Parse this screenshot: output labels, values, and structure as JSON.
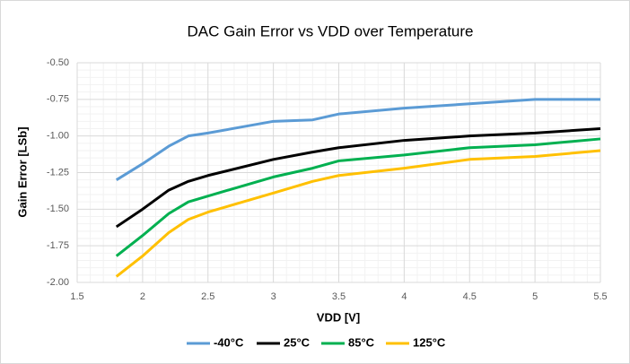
{
  "chart_data": {
    "type": "line",
    "title": "DAC Gain Error vs VDD over Temperature",
    "x_label": "VDD [V]",
    "y_label": "Gain Error [LSb]",
    "x": [
      1.8,
      2.0,
      2.2,
      2.35,
      2.5,
      3.0,
      3.3,
      3.5,
      4.0,
      4.5,
      5.0,
      5.5
    ],
    "series": [
      {
        "name": "-40°C",
        "color": "#5b9bd5",
        "values": [
          -1.3,
          -1.19,
          -1.07,
          -1.0,
          -0.98,
          -0.9,
          -0.89,
          -0.85,
          -0.81,
          -0.78,
          -0.75,
          -0.75
        ]
      },
      {
        "name": "25°C",
        "color": "#000000",
        "values": [
          -1.62,
          -1.5,
          -1.37,
          -1.31,
          -1.27,
          -1.16,
          -1.11,
          -1.08,
          -1.03,
          -1.0,
          -0.98,
          -0.95
        ]
      },
      {
        "name": "85°C",
        "color": "#00b050",
        "values": [
          -1.82,
          -1.68,
          -1.53,
          -1.45,
          -1.41,
          -1.28,
          -1.22,
          -1.17,
          -1.13,
          -1.08,
          -1.06,
          -1.02
        ]
      },
      {
        "name": "125°C",
        "color": "#ffc000",
        "values": [
          -1.96,
          -1.82,
          -1.66,
          -1.57,
          -1.52,
          -1.39,
          -1.31,
          -1.27,
          -1.22,
          -1.16,
          -1.14,
          -1.1
        ]
      }
    ],
    "xlim": [
      1.5,
      5.5
    ],
    "xticks": [
      1.5,
      2,
      2.5,
      3,
      3.5,
      4,
      4.5,
      5,
      5.5
    ],
    "ylim": [
      -2.0,
      -0.5
    ],
    "yticks": [
      {
        "value": -2.0,
        "label": "-2.00"
      },
      {
        "value": -1.75,
        "label": "-1.75"
      },
      {
        "value": -1.5,
        "label": "-1.50"
      },
      {
        "value": -1.25,
        "label": "-1.25"
      },
      {
        "value": -1.0,
        "label": "-1.00"
      },
      {
        "value": -0.75,
        "label": "-0.75"
      },
      {
        "value": -0.5,
        "label": "-0.50"
      }
    ],
    "grid": true,
    "legend": "bottom"
  }
}
